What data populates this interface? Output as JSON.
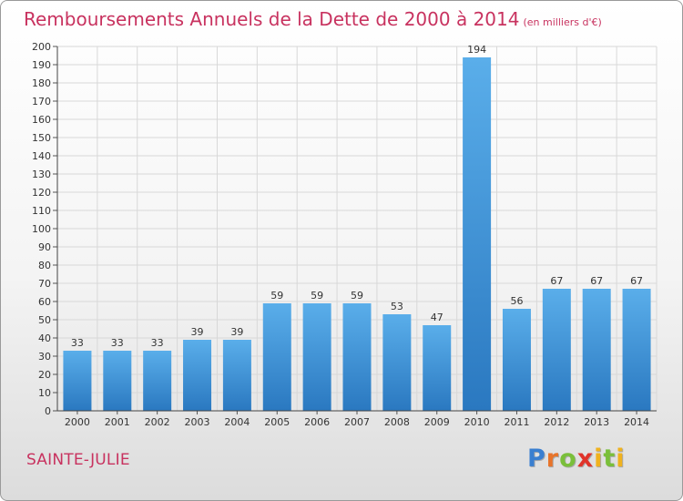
{
  "title": "Remboursements Annuels de la Dette de 2000 à 2014",
  "subtitle": "(en milliers d'€)",
  "commune": "SAINTE-JULIE",
  "logo": {
    "text": "Proxiti",
    "colors": [
      "#3a7fd0",
      "#e8742a",
      "#7abf3a",
      "#e0332a",
      "#f0b21e",
      "#7abf3a",
      "#f0b21e"
    ]
  },
  "colors": {
    "title": "#c8325f",
    "bar_light": "#5aaeea",
    "bar_dark": "#2a78c0",
    "grid": "#d8d8d8"
  },
  "chart_data": {
    "type": "bar",
    "categories": [
      "2000",
      "2001",
      "2002",
      "2003",
      "2004",
      "2005",
      "2006",
      "2007",
      "2008",
      "2009",
      "2010",
      "2011",
      "2012",
      "2013",
      "2014"
    ],
    "values": [
      33,
      33,
      33,
      39,
      39,
      59,
      59,
      59,
      53,
      47,
      194,
      56,
      67,
      67,
      67
    ],
    "ylim": [
      0,
      200
    ],
    "yticks": [
      0,
      10,
      20,
      30,
      40,
      50,
      60,
      70,
      80,
      90,
      100,
      110,
      120,
      130,
      140,
      150,
      160,
      170,
      180,
      190,
      200
    ],
    "grid": true,
    "data_labels": true
  }
}
